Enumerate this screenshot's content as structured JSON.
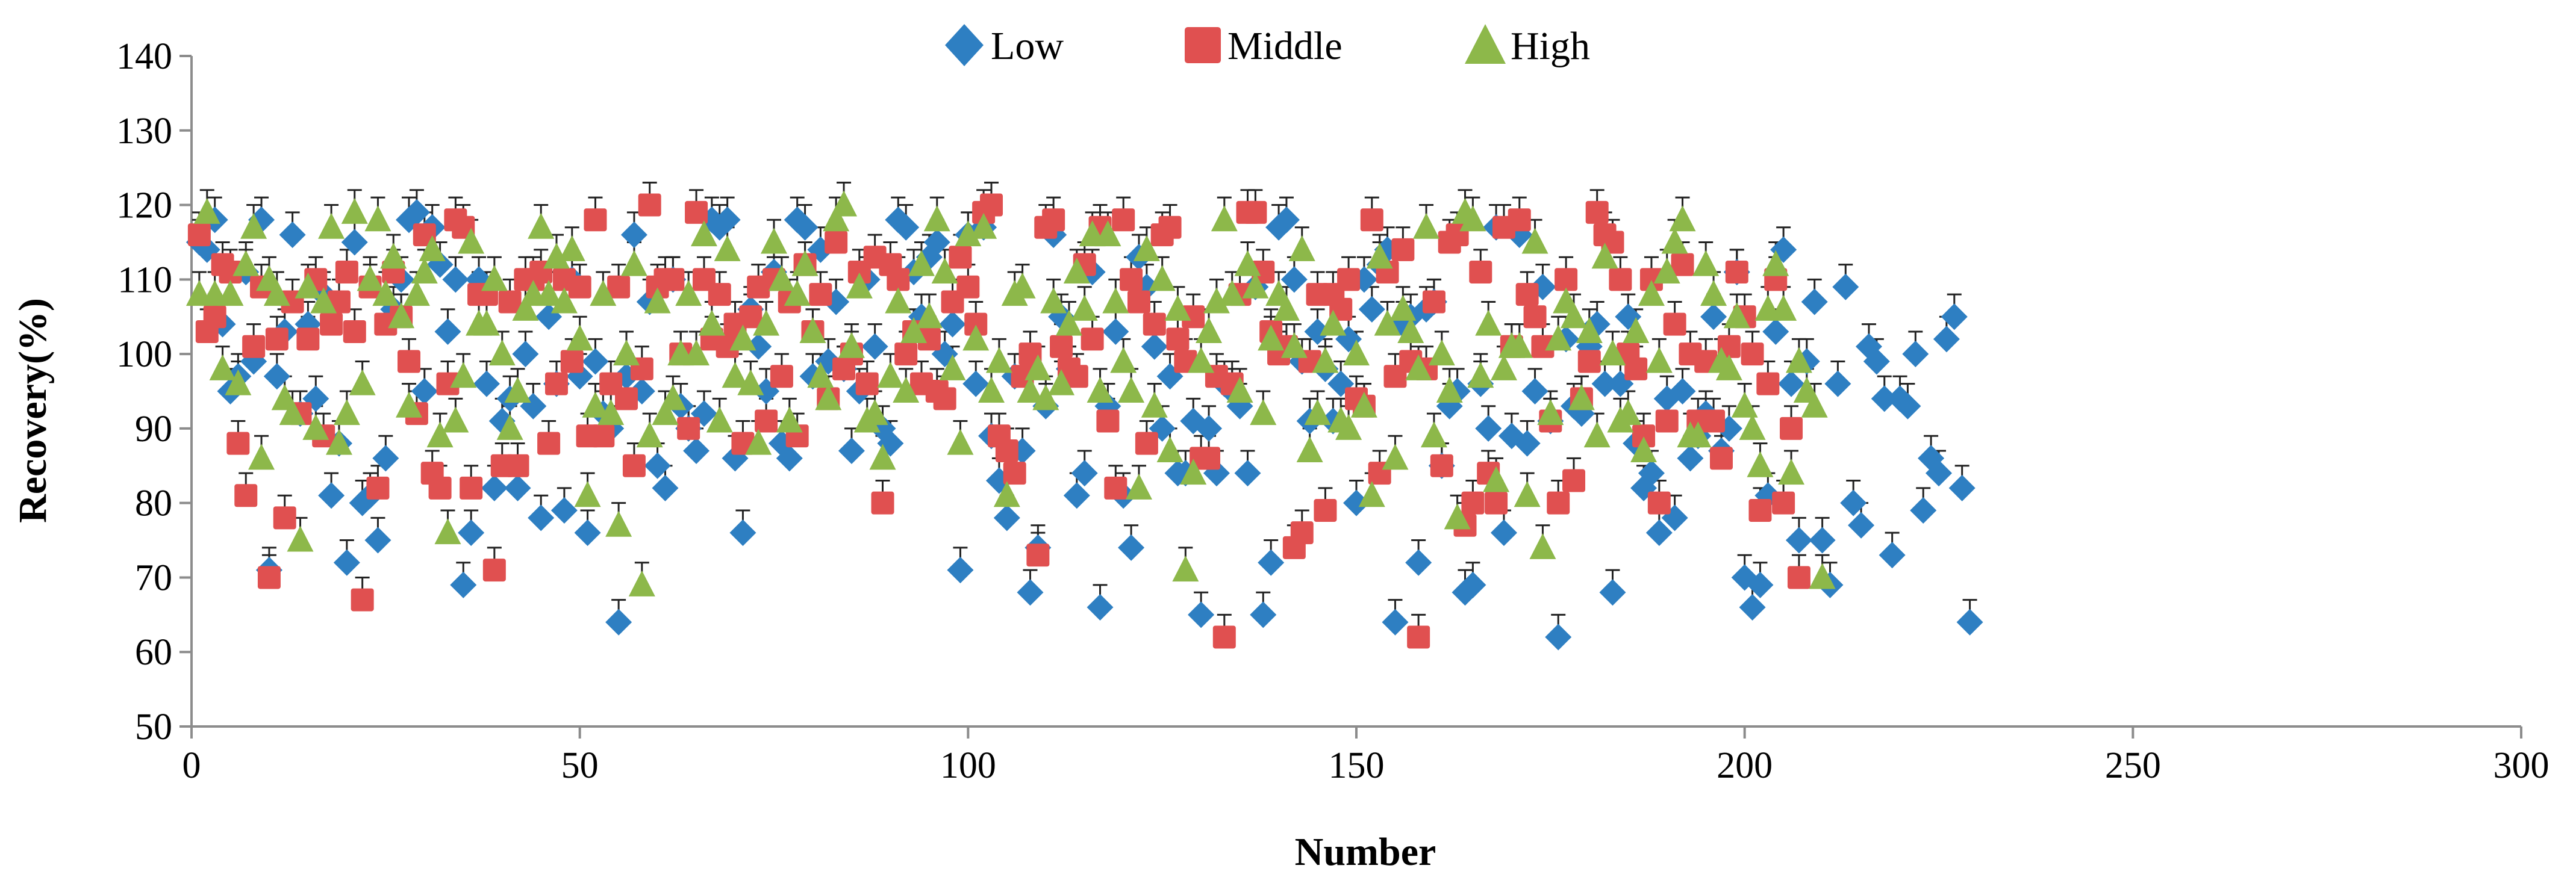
{
  "chart_data": {
    "type": "scatter",
    "title": "",
    "xlabel": "Number",
    "ylabel": "Recovery(%)",
    "xlim": [
      0,
      300
    ],
    "ylim": [
      50,
      140
    ],
    "x_ticks": [
      0,
      50,
      100,
      150,
      200,
      250,
      300
    ],
    "y_ticks": [
      50,
      60,
      70,
      80,
      90,
      100,
      110,
      120,
      130,
      140
    ],
    "x_tick_labels": [
      "0",
      "50",
      "100",
      "150",
      "200",
      "250",
      "300"
    ],
    "y_tick_labels": [
      "50",
      "60",
      "70",
      "80",
      "90",
      "100",
      "110",
      "120",
      "130",
      "140"
    ],
    "grid": false,
    "legend_position": "top-center",
    "error_bars": "positive, approx. 3% recovery",
    "error_bar_size": 3,
    "series": [
      {
        "name": "Low",
        "marker": "diamond",
        "color": "#2E7FC2",
        "values": [
          115,
          114,
          118,
          104,
          95,
          97,
          111,
          99,
          118,
          71,
          97,
          103,
          116,
          92,
          104,
          94,
          108,
          81,
          88,
          72,
          115,
          80,
          81,
          75,
          86,
          106,
          110,
          118,
          119,
          95,
          117,
          112,
          103,
          110,
          69,
          76,
          110,
          96,
          82,
          91,
          94,
          82,
          100,
          93,
          78,
          105,
          96,
          79,
          110,
          97,
          76,
          99,
          92,
          90,
          64,
          97,
          116,
          95,
          107,
          85,
          82,
          110,
          93,
          90,
          87,
          92,
          118,
          117,
          118,
          86,
          76,
          106,
          101,
          95,
          111,
          88,
          86,
          118,
          117,
          97,
          114,
          99,
          107,
          98,
          87,
          95,
          110,
          101,
          90,
          88,
          118,
          117,
          111,
          105,
          113,
          115,
          100,
          104,
          71,
          116,
          96,
          117,
          89,
          83,
          78,
          97,
          87,
          68,
          74,
          93,
          116,
          105,
          98,
          81,
          84,
          111,
          66,
          93,
          103,
          81,
          74,
          113,
          109,
          101,
          90,
          97,
          84,
          84,
          91,
          65,
          90,
          84,
          96,
          95,
          93,
          84,
          109,
          65,
          72,
          117,
          118,
          110,
          99,
          91,
          103,
          98,
          91,
          96,
          102,
          80,
          110,
          106,
          112,
          114,
          64,
          104,
          105,
          72,
          106,
          107,
          85,
          93,
          95,
          68,
          69,
          96,
          90,
          117,
          76,
          89,
          116,
          88,
          95,
          109,
          91,
          62,
          102,
          93,
          92,
          101,
          104,
          96,
          68,
          96,
          105,
          88,
          82,
          84,
          76,
          94,
          78,
          95,
          86,
          89,
          92,
          105,
          87,
          90,
          111,
          70,
          66,
          69,
          81,
          103,
          114,
          96,
          75,
          99,
          107,
          75,
          69,
          96,
          109,
          80,
          77,
          101,
          99,
          94,
          73,
          94,
          93,
          100,
          79,
          86,
          84,
          102,
          105,
          82,
          64
        ]
      },
      {
        "name": "Middle",
        "marker": "square",
        "color": "#E05050",
        "values": [
          116,
          103,
          105,
          112,
          111,
          88,
          81,
          101,
          109,
          70,
          102,
          78,
          107,
          92,
          102,
          110,
          89,
          104,
          107,
          111,
          103,
          67,
          109,
          82,
          104,
          111,
          105,
          99,
          92,
          116,
          84,
          82,
          96,
          118,
          117,
          82,
          108,
          108,
          71,
          85,
          107,
          85,
          110,
          110,
          111,
          88,
          96,
          110,
          99,
          109,
          89,
          118,
          89,
          96,
          109,
          94,
          85,
          98,
          120,
          109,
          110,
          110,
          100,
          90,
          119,
          110,
          102,
          108,
          101,
          104,
          88,
          105,
          109,
          91,
          110,
          97,
          107,
          89,
          112,
          103,
          108,
          94,
          115,
          98,
          100,
          111,
          96,
          113,
          80,
          112,
          110,
          100,
          103,
          96,
          102,
          95,
          94,
          107,
          113,
          109,
          104,
          119,
          120,
          89,
          87,
          84,
          97,
          100,
          73,
          117,
          118,
          101,
          98,
          97,
          112,
          102,
          117,
          91,
          82,
          118,
          110,
          107,
          88,
          104,
          116,
          117,
          102,
          99,
          105,
          86,
          86,
          97,
          62,
          96,
          108,
          119,
          119,
          111,
          103,
          100,
          101,
          74,
          76,
          99,
          108,
          79,
          108,
          106,
          110,
          94,
          93,
          118,
          84,
          111,
          97,
          114,
          99,
          62,
          98,
          107,
          85,
          115,
          116,
          77,
          80,
          111,
          84,
          80,
          117,
          101,
          118,
          108,
          105,
          101,
          91,
          80,
          110,
          83,
          94,
          99,
          119,
          116,
          115,
          110,
          100,
          98,
          89,
          110,
          80,
          91,
          104,
          112,
          100,
          91,
          99,
          91,
          86,
          101,
          111,
          105,
          100,
          79,
          96,
          110,
          80,
          90,
          70
        ]
      },
      {
        "name": "High",
        "marker": "triangle",
        "color": "#8DB84A",
        "values": [
          108,
          119,
          108,
          98,
          108,
          96,
          112,
          117,
          86,
          110,
          108,
          94,
          92,
          75,
          109,
          90,
          107,
          117,
          88,
          92,
          119,
          96,
          110,
          118,
          108,
          113,
          105,
          93,
          108,
          111,
          114,
          89,
          76,
          91,
          97,
          115,
          104,
          104,
          110,
          100,
          90,
          95,
          106,
          108,
          117,
          108,
          113,
          107,
          114,
          102,
          81,
          93,
          108,
          92,
          77,
          100,
          112,
          69,
          89,
          107,
          92,
          94,
          100,
          108,
          100,
          116,
          104,
          91,
          114,
          97,
          102,
          96,
          88,
          104,
          115,
          110,
          91,
          108,
          112,
          103,
          97,
          94,
          118,
          120,
          101,
          109,
          91,
          92,
          86,
          97,
          107,
          95,
          103,
          112,
          105,
          118,
          111,
          98,
          88,
          116,
          102,
          117,
          95,
          99,
          81,
          108,
          109,
          95,
          98,
          94,
          107,
          96,
          104,
          111,
          106,
          116,
          95,
          116,
          107,
          99,
          95,
          82,
          114,
          93,
          110,
          87,
          106,
          71,
          84,
          99,
          103,
          107,
          118,
          108,
          95,
          112,
          109,
          92,
          102,
          108,
          106,
          101,
          114,
          87,
          92,
          99,
          104,
          91,
          90,
          100,
          93,
          81,
          113,
          104,
          86,
          106,
          103,
          98,
          117,
          89,
          100,
          95,
          78,
          119,
          118,
          97,
          104,
          83,
          98,
          101,
          101,
          81,
          115,
          74,
          92,
          102,
          107,
          105,
          94,
          103,
          89,
          113,
          100,
          91,
          92,
          103,
          87,
          108,
          99,
          111,
          115,
          118,
          89,
          89,
          112,
          108,
          99,
          98,
          105,
          93,
          90,
          85,
          106,
          112,
          106,
          84,
          99,
          95,
          93,
          70
        ]
      }
    ]
  }
}
